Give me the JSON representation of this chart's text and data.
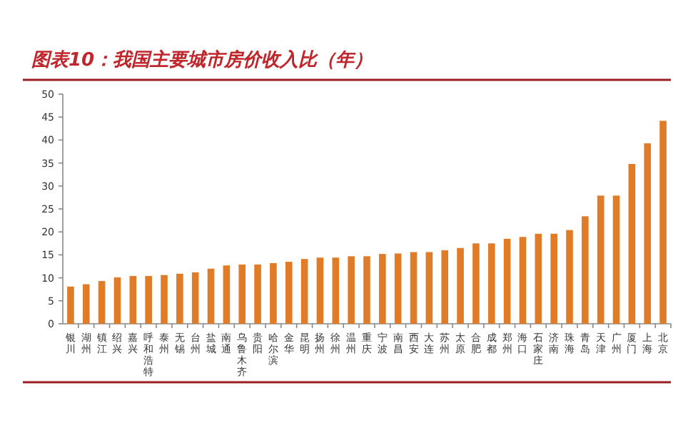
{
  "chart_data": {
    "type": "bar",
    "title": "图表10：我国主要城市房价收入比（年）",
    "categories": [
      "银川",
      "湖州",
      "镇江",
      "绍兴",
      "嘉兴",
      "呼和浩特",
      "泰州",
      "无锡",
      "台州",
      "盐城",
      "南通",
      "乌鲁木齐",
      "贵阳",
      "哈尔滨",
      "金华",
      "昆明",
      "扬州",
      "徐州",
      "温州",
      "重庆",
      "宁波",
      "南昌",
      "西安",
      "大连",
      "苏州",
      "太原",
      "合肥",
      "成都",
      "郑州",
      "海口",
      "石家庄",
      "济南",
      "珠海",
      "青岛",
      "天津",
      "广州",
      "厦门",
      "上海",
      "北京"
    ],
    "values": [
      8.1,
      8.6,
      9.3,
      10.1,
      10.4,
      10.4,
      10.6,
      10.9,
      11.2,
      12.0,
      12.7,
      12.9,
      12.9,
      13.2,
      13.5,
      14.1,
      14.4,
      14.4,
      14.7,
      14.7,
      15.2,
      15.3,
      15.6,
      15.6,
      16.0,
      16.5,
      17.5,
      17.5,
      18.5,
      18.9,
      19.6,
      19.6,
      20.4,
      23.4,
      27.9,
      27.9,
      34.8,
      39.3,
      44.2
    ],
    "color": "#e07b28",
    "ylim": [
      0,
      50
    ],
    "yticks": [
      0,
      5,
      10,
      15,
      20,
      25,
      30,
      35,
      40,
      45,
      50
    ],
    "grid": false
  }
}
